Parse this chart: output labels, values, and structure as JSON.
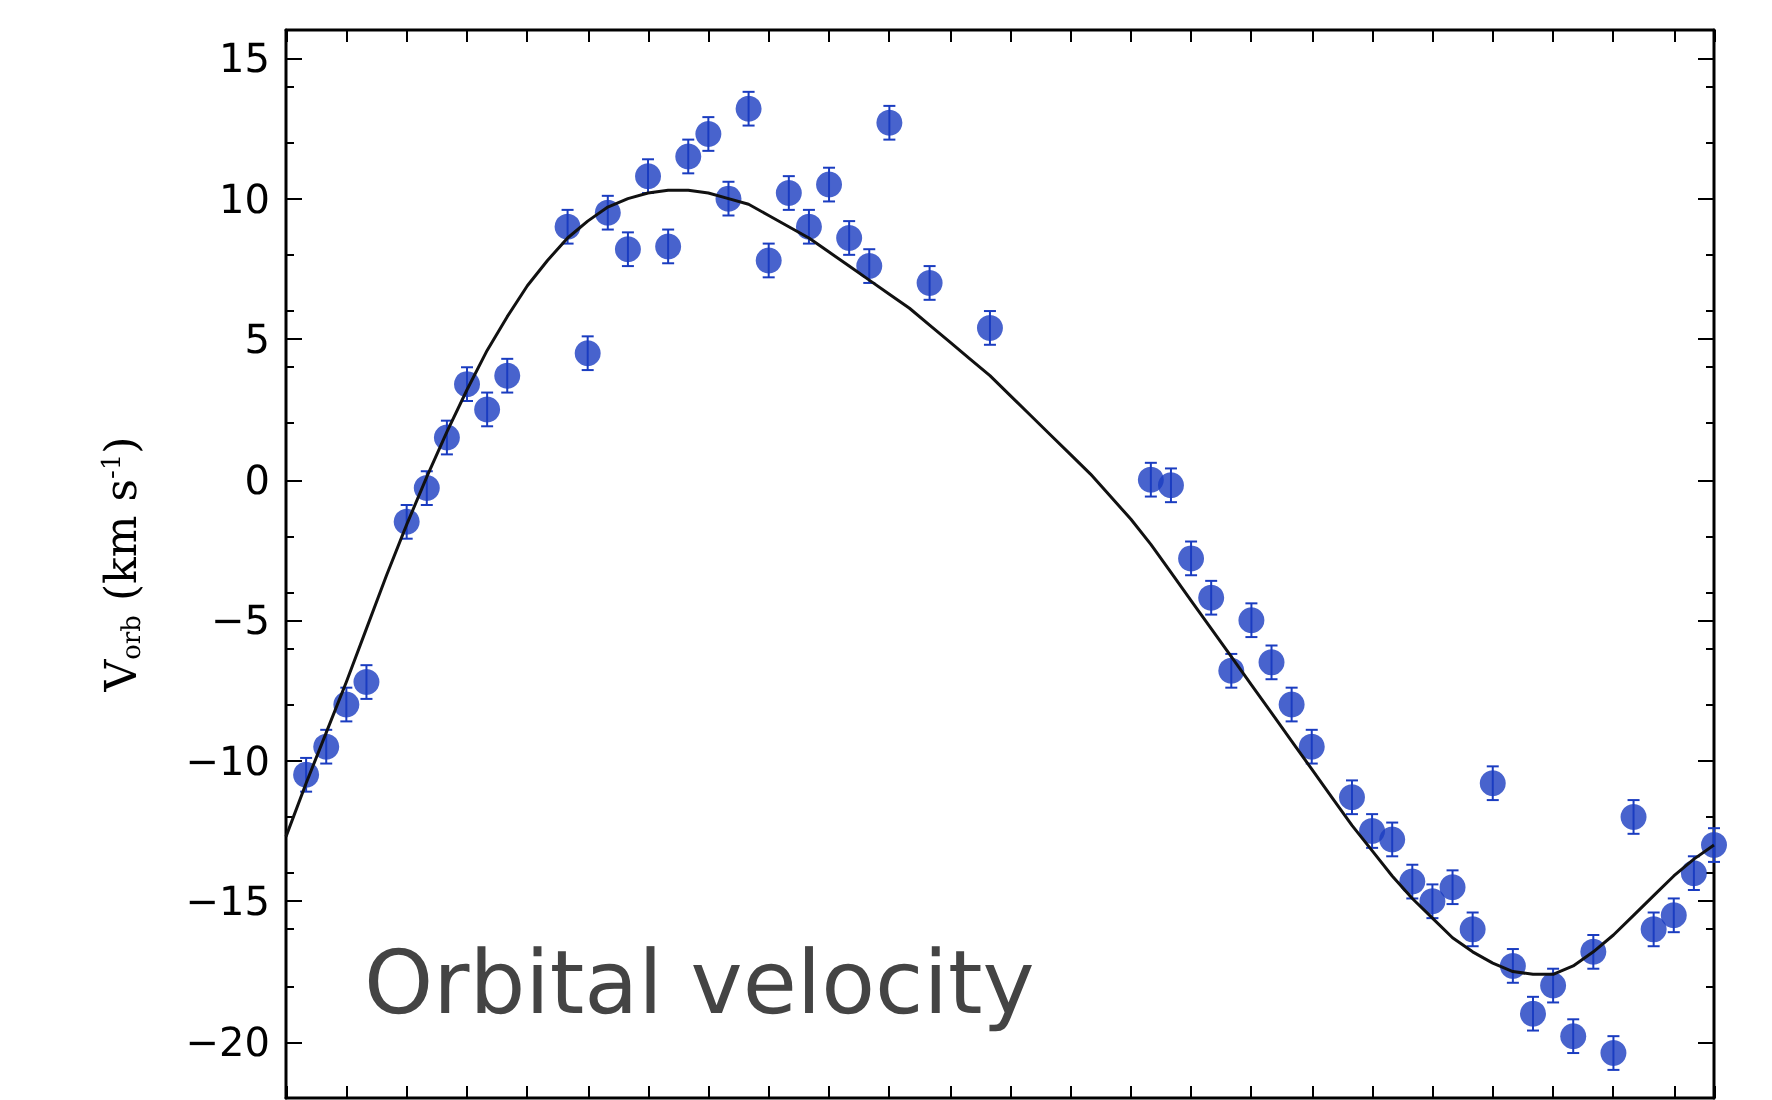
{
  "chart_data": {
    "type": "scatter",
    "ylabel": "V$_{orb}$ (km s$^{-1}$)",
    "annotations": [
      "Orbital velocity"
    ],
    "categories": [
      null,
      null,
      null,
      null,
      null,
      null,
      null,
      null,
      null,
      null,
      null,
      null,
      null,
      null,
      null,
      null,
      null,
      null,
      null,
      null,
      null,
      null,
      null,
      null,
      null,
      null,
      null,
      null,
      null,
      null,
      null,
      null,
      null,
      null,
      null,
      null,
      null,
      null,
      null,
      null,
      null,
      null,
      null,
      null,
      null,
      null,
      null,
      null,
      null,
      null,
      null,
      null,
      null,
      null,
      null,
      null,
      null,
      null,
      null,
      null,
      null,
      null,
      null,
      null,
      null,
      null,
      null,
      null,
      null,
      null,
      null,
      null
    ],
    "ylim": [
      -22,
      16
    ],
    "yticks": [
      -20,
      -15,
      -10,
      -5,
      0,
      5,
      10,
      15
    ],
    "tick_labels": "y",
    "grid": false,
    "series": [
      {
        "marker": "circle",
        "color": "#1a3cc0",
        "values": [
          null,
          -10.5,
          -9.5,
          -8,
          -7.2,
          null,
          -1.5,
          -0.3,
          1.5,
          3.4,
          2.5,
          3.7,
          null,
          null,
          9.0,
          4.5,
          9.5,
          8.2,
          10.8,
          8.3,
          11.5,
          12.3,
          10.0,
          13.2,
          7.8,
          10.2,
          9.0,
          10.5,
          8.6,
          7.6,
          12.7,
          null,
          7.0,
          null,
          null,
          5.4,
          null,
          null,
          null,
          null,
          null,
          null,
          null,
          0.0,
          -0.2,
          -2.8,
          -4.2,
          -6.8,
          -5.0,
          -6.5,
          -8.0,
          -9.5,
          null,
          -11.3,
          -12.5,
          -12.8,
          -14.3,
          -15.0,
          -14.5,
          -16.0,
          -10.8,
          -17.3,
          -19.0,
          -18.0,
          -19.8,
          -16.8,
          -20.4,
          -12.0,
          -16.0,
          -15.5,
          -14.0,
          -13.0
        ],
        "errors": [
          null,
          0.6,
          0.6,
          0.6,
          0.6,
          null,
          0.6,
          0.6,
          0.6,
          0.6,
          0.6,
          0.6,
          null,
          null,
          0.6,
          0.6,
          0.6,
          0.6,
          0.6,
          0.6,
          0.6,
          0.6,
          0.6,
          0.6,
          0.6,
          0.6,
          0.6,
          0.6,
          0.6,
          0.6,
          0.6,
          null,
          0.6,
          null,
          null,
          0.6,
          null,
          null,
          null,
          null,
          null,
          null,
          null,
          0.6,
          0.6,
          0.6,
          0.6,
          0.6,
          0.6,
          0.6,
          0.6,
          0.6,
          null,
          0.6,
          0.6,
          0.6,
          0.6,
          0.6,
          0.6,
          0.6,
          0.6,
          0.6,
          0.6,
          0.6,
          0.6,
          0.6,
          0.6,
          0.6,
          0.6,
          0.6,
          0.6,
          0.6
        ]
      },
      {
        "type": "line",
        "marker": "none",
        "color": "#111111",
        "values": [
          -12.7,
          -10.8,
          -9,
          -7.2,
          -5.3,
          -3.4,
          -1.6,
          0.1,
          1.7,
          3.2,
          4.6,
          5.8,
          6.9,
          7.8,
          8.6,
          9.2,
          9.7,
          10.0,
          10.2,
          10.3,
          10.3,
          10.2,
          10.0,
          9.8,
          9.4,
          9.0,
          8.6,
          8.1,
          7.6,
          7.1,
          6.6,
          6.1,
          5.5,
          4.9,
          4.3,
          3.7,
          3.0,
          2.3,
          1.6,
          0.9,
          0.2,
          -0.6,
          -1.4,
          -2.3,
          -3.3,
          -4.3,
          -5.3,
          -6.3,
          -7.3,
          -8.3,
          -9.3,
          -10.3,
          -11.3,
          -12.3,
          -13.2,
          -14.1,
          -14.9,
          -15.6,
          -16.3,
          -16.8,
          -17.2,
          -17.5,
          -17.6,
          -17.6,
          -17.3,
          -16.8,
          -16.2,
          -15.5,
          -14.8,
          -14.1,
          -13.5,
          -13.0
        ]
      }
    ]
  }
}
